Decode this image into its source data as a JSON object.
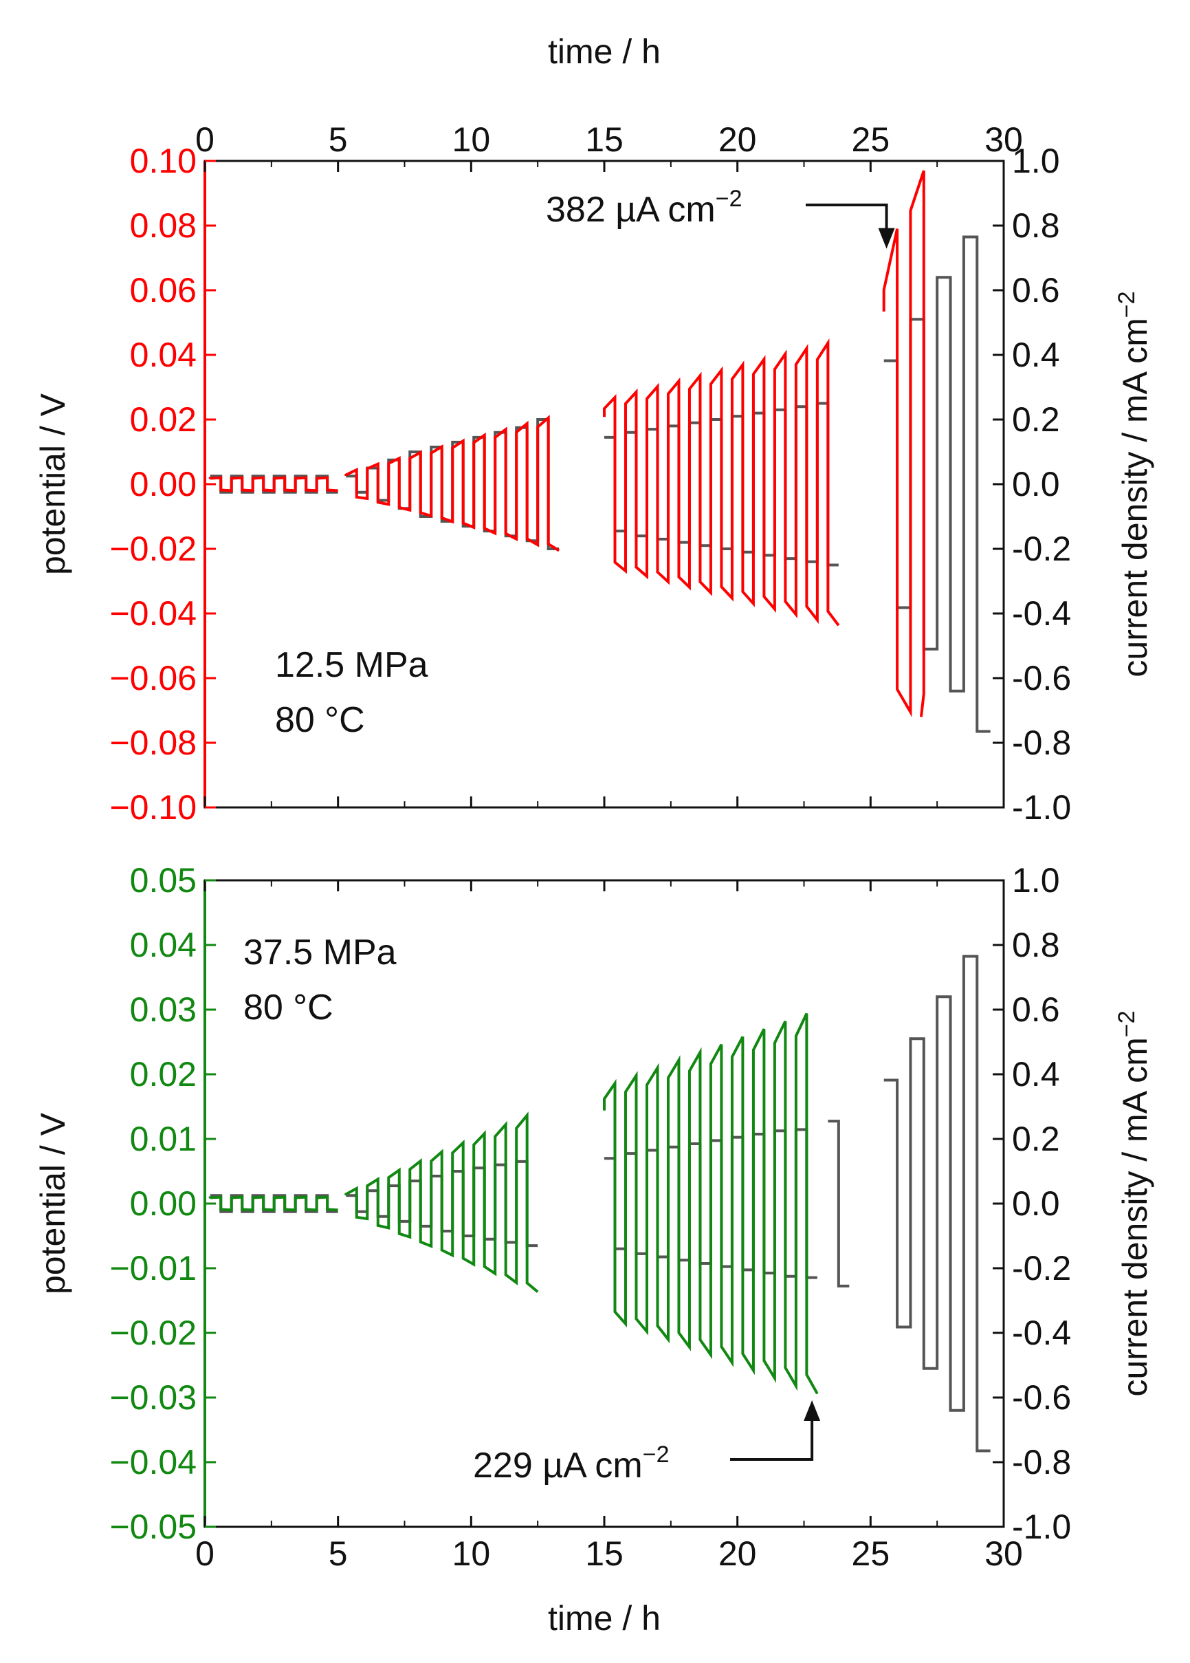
{
  "colors": {
    "top_potential": "#ff0000",
    "bottom_potential": "#118811",
    "current": "#555555",
    "text": "#111111"
  },
  "chart_data": [
    {
      "type": "line",
      "xlabel_top": "time / h",
      "ylabel_left": "potential / V",
      "ylabel_right": "current density / mA cm-2",
      "xlim": [
        0,
        30
      ],
      "ylim_left": [
        -0.1,
        0.1
      ],
      "ylim_right": [
        -1.0,
        1.0
      ],
      "x_ticks": [
        "0",
        "5",
        "10",
        "15",
        "20",
        "25",
        "30"
      ],
      "left_ticks": [
        "0.10",
        "0.08",
        "0.06",
        "0.04",
        "0.02",
        "0.00",
        "−0.02",
        "−0.04",
        "−0.06",
        "−0.08",
        "−0.10"
      ],
      "right_ticks": [
        "1.0",
        "0.8",
        "0.6",
        "0.4",
        "0.2",
        "0.0",
        "-0.2",
        "-0.4",
        "-0.6",
        "-0.8",
        "-1.0"
      ],
      "condition": [
        "12.5 MPa",
        "80 °C"
      ],
      "annotation": {
        "text": "382 µA cm",
        "sup": "−2",
        "x": 25.6,
        "y_current": 0.72
      },
      "current_steps_mA_cm2": [
        {
          "block": 1,
          "t_start": 0.2,
          "period": 0.8,
          "amplitudes": [
            0.025,
            0.025,
            0.025,
            0.025,
            0.025,
            0.025
          ]
        },
        {
          "block": 2,
          "t_start": 5.3,
          "period": 0.8,
          "amplitudes": [
            0.025,
            0.05,
            0.075,
            0.1,
            0.115,
            0.13,
            0.145,
            0.16,
            0.175,
            0.2
          ]
        },
        {
          "block": 3,
          "t_start": 15.0,
          "period": 0.8,
          "amplitudes": [
            0.145,
            0.16,
            0.17,
            0.18,
            0.19,
            0.2,
            0.21,
            0.22,
            0.23,
            0.24,
            0.25
          ]
        },
        {
          "block": 4,
          "t_start": 25.5,
          "period": 1.0,
          "amplitudes": [
            0.382,
            0.51,
            0.64,
            0.765
          ]
        }
      ],
      "potential_envelope_V": [
        {
          "t": 0.2,
          "up": 0.002,
          "down": -0.002
        },
        {
          "t": 5.0,
          "up": 0.002,
          "down": -0.002
        },
        {
          "t": 5.5,
          "up": 0.004,
          "down": -0.004
        },
        {
          "t": 14.0,
          "up": 0.023,
          "down": -0.023
        },
        {
          "t": 15.0,
          "up": 0.026,
          "down": -0.026
        },
        {
          "t": 24.5,
          "up": 0.046,
          "down": -0.046
        },
        {
          "t": 25.8,
          "up": 0.073,
          "down": -0.07
        },
        {
          "t": 26.6,
          "up": 0.097,
          "down": -0.072
        }
      ]
    },
    {
      "type": "line",
      "xlabel_bottom": "time / h",
      "ylabel_left": "potential / V",
      "ylabel_right": "current density / mA cm-2",
      "xlim": [
        0,
        30
      ],
      "ylim_left": [
        -0.05,
        0.05
      ],
      "ylim_right": [
        -1.0,
        1.0
      ],
      "x_ticks": [
        "0",
        "5",
        "10",
        "15",
        "20",
        "25",
        "30"
      ],
      "left_ticks": [
        "0.05",
        "0.04",
        "0.03",
        "0.02",
        "0.01",
        "0.00",
        "−0.01",
        "−0.02",
        "−0.03",
        "−0.04",
        "−0.05"
      ],
      "right_ticks": [
        "1.0",
        "0.8",
        "0.6",
        "0.4",
        "0.2",
        "0.0",
        "-0.2",
        "-0.4",
        "-0.6",
        "-0.8",
        "-1.0"
      ],
      "condition": [
        "37.5 MPa",
        "80 °C"
      ],
      "annotation": {
        "text": "229 µA cm",
        "sup": "−2",
        "x": 22.8,
        "y_potential": -0.03
      },
      "current_steps_mA_cm2": [
        {
          "block": 1,
          "t_start": 0.2,
          "period": 0.8,
          "amplitudes": [
            0.025,
            0.025,
            0.025,
            0.025,
            0.025,
            0.025
          ]
        },
        {
          "block": 2,
          "t_start": 5.3,
          "period": 0.8,
          "amplitudes": [
            0.025,
            0.04,
            0.055,
            0.07,
            0.085,
            0.1,
            0.11,
            0.12,
            0.13
          ]
        },
        {
          "block": 3,
          "t_start": 15.0,
          "period": 0.8,
          "amplitudes": [
            0.14,
            0.155,
            0.165,
            0.175,
            0.185,
            0.195,
            0.205,
            0.215,
            0.225,
            0.229
          ]
        },
        {
          "block": 4,
          "t_start": 23.4,
          "period": 0.8,
          "amplitudes": [
            0.255
          ]
        },
        {
          "block": 5,
          "t_start": 25.5,
          "period": 1.0,
          "amplitudes": [
            0.382,
            0.51,
            0.64,
            0.765
          ]
        }
      ],
      "potential_envelope_V": [
        {
          "t": 0.2,
          "up": 0.001,
          "down": -0.001
        },
        {
          "t": 5.0,
          "up": 0.001,
          "down": -0.001
        },
        {
          "t": 5.5,
          "up": 0.002,
          "down": -0.002
        },
        {
          "t": 14.0,
          "up": 0.017,
          "down": -0.017
        },
        {
          "t": 15.0,
          "up": 0.018,
          "down": -0.018
        },
        {
          "t": 23.0,
          "up": 0.03,
          "down": -0.03
        }
      ]
    }
  ]
}
